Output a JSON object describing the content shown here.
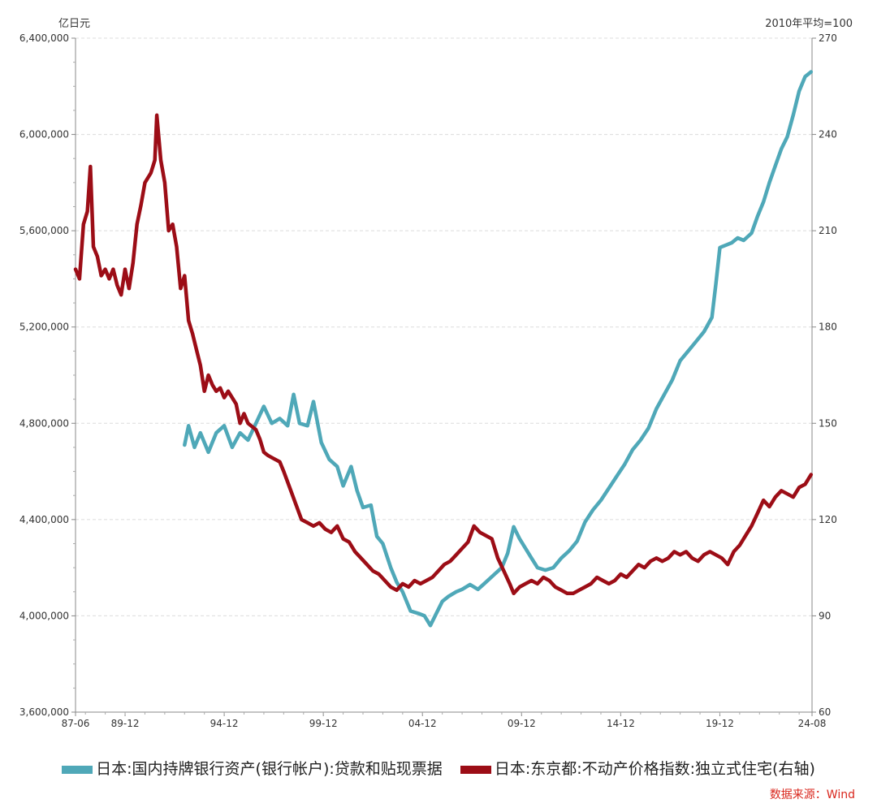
{
  "chart_data": {
    "type": "line",
    "x_range": [
      "87-06",
      "24-08"
    ],
    "x_ticks": [
      "87-06",
      "89-12",
      "94-12",
      "99-12",
      "04-12",
      "09-12",
      "14-12",
      "19-12",
      "24-08"
    ],
    "left_axis": {
      "unit": "亿日元",
      "ylim": [
        3600000,
        6400000
      ],
      "tick_labels": [
        "3,600,000",
        "4,000,000",
        "4,400,000",
        "4,800,000",
        "5,200,000",
        "5,600,000",
        "6,000,000",
        "6,400,000"
      ]
    },
    "right_axis": {
      "unit": "2010年平均=100",
      "ylim": [
        60,
        270
      ],
      "tick_labels": [
        "60",
        "90",
        "120",
        "150",
        "180",
        "210",
        "240",
        "270"
      ]
    },
    "grid": "horizontal dashed",
    "legend_position": "bottom",
    "series": [
      {
        "name": "日本:国内持牌银行资产(银行帐户):贷款和贴现票据",
        "axis": "left",
        "color": "#4fa8b8",
        "points": [
          [
            1993.0,
            4710000
          ],
          [
            1993.2,
            4790000
          ],
          [
            1993.5,
            4700000
          ],
          [
            1993.8,
            4760000
          ],
          [
            1994.2,
            4680000
          ],
          [
            1994.6,
            4760000
          ],
          [
            1995.0,
            4790000
          ],
          [
            1995.4,
            4700000
          ],
          [
            1995.8,
            4760000
          ],
          [
            1996.2,
            4730000
          ],
          [
            1996.6,
            4800000
          ],
          [
            1997.0,
            4870000
          ],
          [
            1997.4,
            4800000
          ],
          [
            1997.8,
            4820000
          ],
          [
            1998.2,
            4790000
          ],
          [
            1998.5,
            4920000
          ],
          [
            1998.8,
            4800000
          ],
          [
            1999.2,
            4790000
          ],
          [
            1999.5,
            4890000
          ],
          [
            1999.9,
            4720000
          ],
          [
            2000.3,
            4650000
          ],
          [
            2000.7,
            4620000
          ],
          [
            2001.0,
            4540000
          ],
          [
            2001.4,
            4620000
          ],
          [
            2001.7,
            4520000
          ],
          [
            2002.0,
            4450000
          ],
          [
            2002.4,
            4460000
          ],
          [
            2002.7,
            4330000
          ],
          [
            2003.0,
            4300000
          ],
          [
            2003.4,
            4200000
          ],
          [
            2003.7,
            4140000
          ],
          [
            2004.0,
            4100000
          ],
          [
            2004.4,
            4020000
          ],
          [
            2004.8,
            4010000
          ],
          [
            2005.1,
            4000000
          ],
          [
            2005.4,
            3960000
          ],
          [
            2005.7,
            4010000
          ],
          [
            2006.0,
            4060000
          ],
          [
            2006.3,
            4080000
          ],
          [
            2006.7,
            4100000
          ],
          [
            2007.0,
            4110000
          ],
          [
            2007.4,
            4130000
          ],
          [
            2007.8,
            4110000
          ],
          [
            2008.2,
            4140000
          ],
          [
            2008.6,
            4170000
          ],
          [
            2009.0,
            4200000
          ],
          [
            2009.3,
            4260000
          ],
          [
            2009.6,
            4370000
          ],
          [
            2009.9,
            4320000
          ],
          [
            2010.2,
            4280000
          ],
          [
            2010.5,
            4240000
          ],
          [
            2010.8,
            4200000
          ],
          [
            2011.2,
            4190000
          ],
          [
            2011.6,
            4200000
          ],
          [
            2012.0,
            4240000
          ],
          [
            2012.4,
            4270000
          ],
          [
            2012.8,
            4310000
          ],
          [
            2013.2,
            4390000
          ],
          [
            2013.6,
            4440000
          ],
          [
            2014.0,
            4480000
          ],
          [
            2014.4,
            4530000
          ],
          [
            2014.8,
            4580000
          ],
          [
            2015.2,
            4630000
          ],
          [
            2015.6,
            4690000
          ],
          [
            2016.0,
            4730000
          ],
          [
            2016.4,
            4780000
          ],
          [
            2016.8,
            4860000
          ],
          [
            2017.2,
            4920000
          ],
          [
            2017.6,
            4980000
          ],
          [
            2018.0,
            5060000
          ],
          [
            2018.4,
            5100000
          ],
          [
            2018.8,
            5140000
          ],
          [
            2019.2,
            5180000
          ],
          [
            2019.6,
            5240000
          ],
          [
            2019.8,
            5380000
          ],
          [
            2020.0,
            5530000
          ],
          [
            2020.3,
            5540000
          ],
          [
            2020.6,
            5550000
          ],
          [
            2020.9,
            5570000
          ],
          [
            2021.2,
            5560000
          ],
          [
            2021.6,
            5590000
          ],
          [
            2021.9,
            5660000
          ],
          [
            2022.2,
            5720000
          ],
          [
            2022.5,
            5800000
          ],
          [
            2022.8,
            5870000
          ],
          [
            2023.1,
            5940000
          ],
          [
            2023.4,
            5990000
          ],
          [
            2023.7,
            6080000
          ],
          [
            2024.0,
            6180000
          ],
          [
            2024.3,
            6240000
          ],
          [
            2024.6,
            6260000
          ]
        ]
      },
      {
        "name": "日本:东京都:不动产价格指数:独立式住宅(右轴)",
        "axis": "right",
        "color": "#9c0d16",
        "points": [
          [
            1987.5,
            198
          ],
          [
            1987.7,
            195
          ],
          [
            1987.9,
            212
          ],
          [
            1988.1,
            216
          ],
          [
            1988.25,
            230
          ],
          [
            1988.4,
            205
          ],
          [
            1988.6,
            202
          ],
          [
            1988.8,
            196
          ],
          [
            1989.0,
            198
          ],
          [
            1989.2,
            195
          ],
          [
            1989.4,
            198
          ],
          [
            1989.6,
            193
          ],
          [
            1989.8,
            190
          ],
          [
            1990.0,
            198
          ],
          [
            1990.2,
            192
          ],
          [
            1990.4,
            200
          ],
          [
            1990.6,
            212
          ],
          [
            1990.8,
            218
          ],
          [
            1991.0,
            225
          ],
          [
            1991.3,
            228
          ],
          [
            1991.5,
            232
          ],
          [
            1991.6,
            246
          ],
          [
            1991.8,
            232
          ],
          [
            1992.0,
            225
          ],
          [
            1992.2,
            210
          ],
          [
            1992.4,
            212
          ],
          [
            1992.6,
            205
          ],
          [
            1992.8,
            192
          ],
          [
            1993.0,
            196
          ],
          [
            1993.2,
            182
          ],
          [
            1993.4,
            178
          ],
          [
            1993.6,
            173
          ],
          [
            1993.8,
            168
          ],
          [
            1994.0,
            160
          ],
          [
            1994.2,
            165
          ],
          [
            1994.4,
            162
          ],
          [
            1994.6,
            160
          ],
          [
            1994.8,
            161
          ],
          [
            1995.0,
            158
          ],
          [
            1995.2,
            160
          ],
          [
            1995.4,
            158
          ],
          [
            1995.6,
            156
          ],
          [
            1995.8,
            150
          ],
          [
            1996.0,
            153
          ],
          [
            1996.2,
            150
          ],
          [
            1996.4,
            149
          ],
          [
            1996.6,
            148
          ],
          [
            1996.8,
            145
          ],
          [
            1997.0,
            141
          ],
          [
            1997.2,
            140
          ],
          [
            1997.5,
            139
          ],
          [
            1997.8,
            138
          ],
          [
            1998.0,
            135
          ],
          [
            1998.3,
            130
          ],
          [
            1998.6,
            125
          ],
          [
            1998.9,
            120
          ],
          [
            1999.2,
            119
          ],
          [
            1999.5,
            118
          ],
          [
            1999.8,
            119
          ],
          [
            2000.1,
            117
          ],
          [
            2000.4,
            116
          ],
          [
            2000.7,
            118
          ],
          [
            2001.0,
            114
          ],
          [
            2001.3,
            113
          ],
          [
            2001.6,
            110
          ],
          [
            2001.9,
            108
          ],
          [
            2002.2,
            106
          ],
          [
            2002.5,
            104
          ],
          [
            2002.8,
            103
          ],
          [
            2003.1,
            101
          ],
          [
            2003.4,
            99
          ],
          [
            2003.7,
            98
          ],
          [
            2004.0,
            100
          ],
          [
            2004.3,
            99
          ],
          [
            2004.6,
            101
          ],
          [
            2004.9,
            100
          ],
          [
            2005.2,
            101
          ],
          [
            2005.5,
            102
          ],
          [
            2005.8,
            104
          ],
          [
            2006.1,
            106
          ],
          [
            2006.4,
            107
          ],
          [
            2006.7,
            109
          ],
          [
            2007.0,
            111
          ],
          [
            2007.3,
            113
          ],
          [
            2007.6,
            118
          ],
          [
            2007.9,
            116
          ],
          [
            2008.2,
            115
          ],
          [
            2008.5,
            114
          ],
          [
            2008.8,
            108
          ],
          [
            2009.1,
            104
          ],
          [
            2009.4,
            100
          ],
          [
            2009.6,
            97
          ],
          [
            2009.9,
            99
          ],
          [
            2010.2,
            100
          ],
          [
            2010.5,
            101
          ],
          [
            2010.8,
            100
          ],
          [
            2011.1,
            102
          ],
          [
            2011.4,
            101
          ],
          [
            2011.7,
            99
          ],
          [
            2012.0,
            98
          ],
          [
            2012.3,
            97
          ],
          [
            2012.6,
            97
          ],
          [
            2012.9,
            98
          ],
          [
            2013.2,
            99
          ],
          [
            2013.5,
            100
          ],
          [
            2013.8,
            102
          ],
          [
            2014.1,
            101
          ],
          [
            2014.4,
            100
          ],
          [
            2014.7,
            101
          ],
          [
            2015.0,
            103
          ],
          [
            2015.3,
            102
          ],
          [
            2015.6,
            104
          ],
          [
            2015.9,
            106
          ],
          [
            2016.2,
            105
          ],
          [
            2016.5,
            107
          ],
          [
            2016.8,
            108
          ],
          [
            2017.1,
            107
          ],
          [
            2017.4,
            108
          ],
          [
            2017.7,
            110
          ],
          [
            2018.0,
            109
          ],
          [
            2018.3,
            110
          ],
          [
            2018.6,
            108
          ],
          [
            2018.9,
            107
          ],
          [
            2019.2,
            109
          ],
          [
            2019.5,
            110
          ],
          [
            2019.8,
            109
          ],
          [
            2020.1,
            108
          ],
          [
            2020.4,
            106
          ],
          [
            2020.7,
            110
          ],
          [
            2021.0,
            112
          ],
          [
            2021.3,
            115
          ],
          [
            2021.6,
            118
          ],
          [
            2021.9,
            122
          ],
          [
            2022.2,
            126
          ],
          [
            2022.5,
            124
          ],
          [
            2022.8,
            127
          ],
          [
            2023.1,
            129
          ],
          [
            2023.4,
            128
          ],
          [
            2023.7,
            127
          ],
          [
            2024.0,
            130
          ],
          [
            2024.3,
            131
          ],
          [
            2024.6,
            134
          ]
        ]
      }
    ]
  },
  "legend": {
    "items": [
      {
        "label": "日本:国内持牌银行资产(银行帐户):贷款和贴现票据",
        "color": "#4fa8b8"
      },
      {
        "label": "日本:东京都:不动产价格指数:独立式住宅(右轴)",
        "color": "#9c0d16"
      }
    ]
  },
  "source": "数据来源：Wind"
}
